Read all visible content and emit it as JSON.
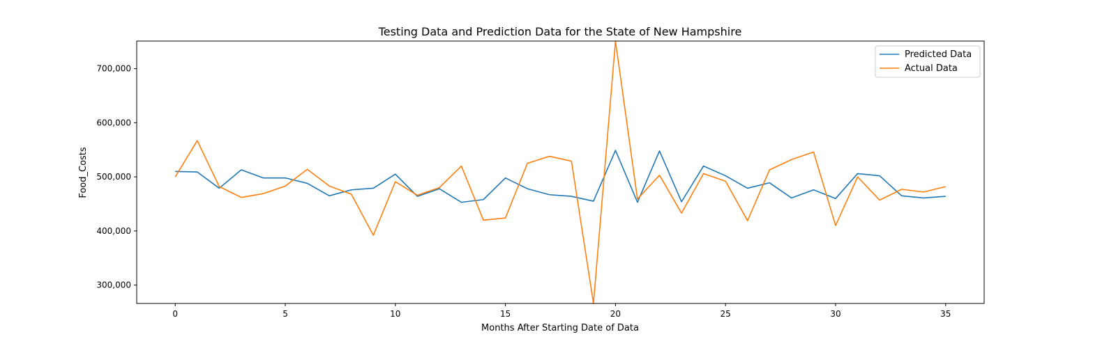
{
  "chart_data": {
    "type": "line",
    "title": "Testing Data and Prediction Data for the State of New Hampshire",
    "xlabel": "Months After Starting Date of Data",
    "ylabel": "Food_Costs",
    "xlim": [
      -1.75,
      36.75
    ],
    "ylim": [
      266000,
      751000
    ],
    "x_ticks": [
      0,
      5,
      10,
      15,
      20,
      25,
      30,
      35
    ],
    "x_tick_labels": [
      "0",
      "5",
      "10",
      "15",
      "20",
      "25",
      "30",
      "35"
    ],
    "y_ticks": [
      300000,
      400000,
      500000,
      600000,
      700000
    ],
    "y_tick_labels": [
      "300,000",
      "400,000",
      "500,000",
      "600,000",
      "700,000"
    ],
    "grid": false,
    "legend_position": "top-right",
    "x": [
      0,
      1,
      2,
      3,
      4,
      5,
      6,
      7,
      8,
      9,
      10,
      11,
      12,
      13,
      14,
      15,
      16,
      17,
      18,
      19,
      20,
      21,
      22,
      23,
      24,
      25,
      26,
      27,
      28,
      29,
      30,
      31,
      32,
      33,
      34,
      35
    ],
    "series": [
      {
        "name": "Predicted Data",
        "color": "#1f77b4",
        "values": [
          510000,
          509000,
          479000,
          513000,
          498000,
          498000,
          488000,
          465000,
          476000,
          479000,
          505000,
          464000,
          478000,
          453000,
          458000,
          498000,
          478000,
          467000,
          464000,
          455000,
          549000,
          453000,
          548000,
          454000,
          520000,
          502000,
          479000,
          489000,
          461000,
          476000,
          460000,
          506000,
          502000,
          465000,
          461000,
          464000
        ]
      },
      {
        "name": "Actual Data",
        "color": "#ff7f0e",
        "values": [
          500000,
          567000,
          482000,
          462000,
          469000,
          483000,
          514000,
          483000,
          468000,
          392000,
          491000,
          466000,
          480000,
          520000,
          420000,
          424000,
          525000,
          538000,
          529000,
          266000,
          751000,
          459000,
          503000,
          433000,
          506000,
          492000,
          419000,
          513000,
          532000,
          546000,
          410000,
          500000,
          457000,
          477000,
          472000,
          482000
        ]
      }
    ]
  }
}
